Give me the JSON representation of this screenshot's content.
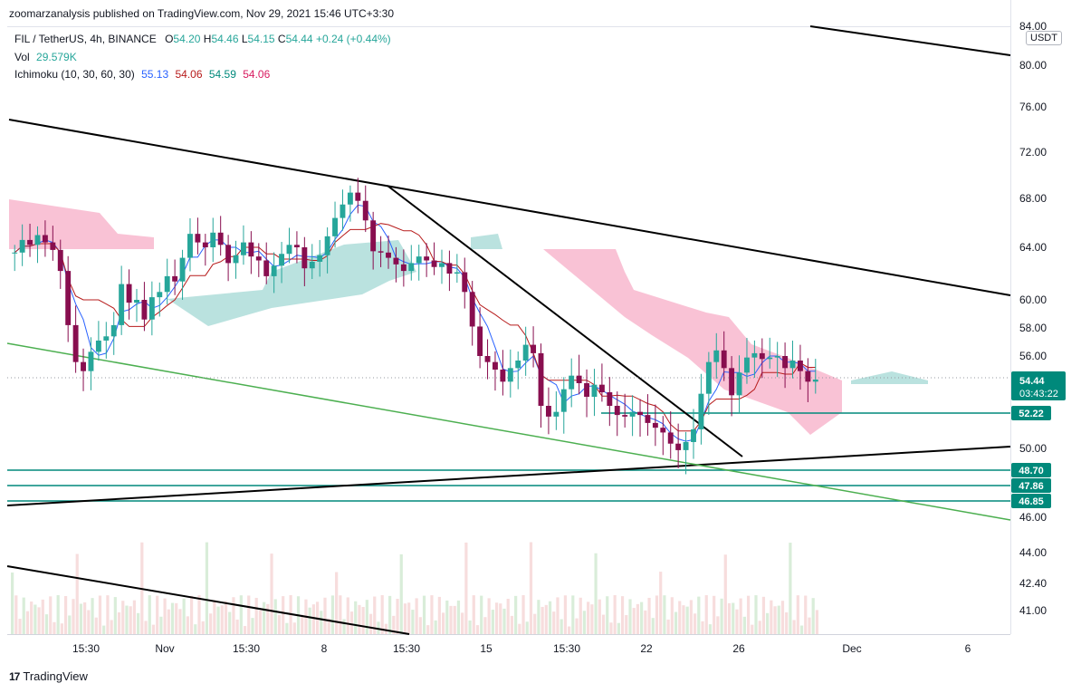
{
  "publisher_line": "zoomarzanalysis published on TradingView.com, Nov 29, 2021 15:46 UTC+3:30",
  "legend": {
    "symbol": "FIL / TetherUS, 4h, BINANCE",
    "open_label": "O",
    "open": "54.20",
    "high_label": "H",
    "high": "54.46",
    "low_label": "L",
    "low": "54.15",
    "close_label": "C",
    "close": "54.44",
    "change": "+0.24 (+0.44%)",
    "vol_label": "Vol",
    "vol": "29.579K",
    "ichimoku_label": "Ichimoku (10, 30, 60, 30)",
    "ichi_1": "55.13",
    "ichi_2": "54.06",
    "ichi_3": "54.59",
    "ichi_4": "54.06"
  },
  "currency": "USDT",
  "footer": {
    "logo": "17",
    "brand": "TradingView"
  },
  "colors": {
    "up": "#26a69a",
    "down": "#ef5350",
    "candle_up": "#26a69a",
    "candle_down": "#880e4f",
    "conversion": "#2962ff",
    "base": "#b71c1c",
    "cloud_bull": "#b2dfdb",
    "cloud_bear": "#f8bbd0",
    "trendline": "#000000",
    "green_line": "#4caf50",
    "level": "#00897b"
  },
  "chart_data": {
    "type": "candlestick",
    "symbol": "FIL / TetherUS",
    "timeframe": "4h",
    "exchange": "BINANCE",
    "y_ticks": [
      "84.00",
      "80.00",
      "76.00",
      "72.00",
      "68.00",
      "64.00",
      "60.00",
      "58.00",
      "56.00",
      "52.22",
      "50.00",
      "46.00",
      "44.00",
      "42.40",
      "41.00"
    ],
    "x_ticks": [
      "15:30",
      "Nov",
      "15:30",
      "8",
      "15:30",
      "15",
      "15:30",
      "22",
      "26",
      "Dec",
      "6"
    ],
    "last_price": "54.44",
    "countdown": "03:43:22",
    "horizontal_levels": [
      "52.22",
      "48.70",
      "47.86",
      "46.85"
    ],
    "close_series": [
      63.6,
      64.6,
      64.2,
      65.0,
      64.4,
      63.8,
      62.2,
      58.2,
      55.6,
      55.0,
      56.3,
      57.1,
      57.4,
      58.2,
      61.2,
      59.8,
      60.0,
      58.6,
      60.2,
      60.6,
      61.8,
      61.4,
      63.2,
      65.1,
      64.4,
      64.0,
      65.2,
      64.2,
      62.8,
      63.4,
      64.4,
      63.3,
      63.0,
      61.8,
      62.6,
      63.5,
      64.2,
      64.0,
      62.4,
      62.9,
      63.4,
      64.9,
      66.4,
      67.5,
      68.5,
      67.8,
      66.2,
      63.7,
      63.6,
      63.2,
      62.7,
      62.2,
      62.8,
      63.3,
      63.0,
      62.5,
      62.8,
      62.0,
      62.1,
      60.6,
      58.1,
      56.0,
      55.6,
      55.1,
      54.3,
      55.2,
      55.7,
      56.8,
      56.2,
      52.7,
      52.0,
      52.3,
      53.8,
      54.7,
      54.2,
      53.3,
      54.1,
      53.6,
      52.7,
      52.1,
      52.0,
      52.3,
      52.1,
      51.6,
      51.3,
      51.0,
      50.3,
      49.9,
      50.4,
      51.2,
      53.5,
      55.6,
      56.4,
      55.2,
      53.4,
      54.9,
      55.9,
      56.2,
      55.8,
      55.9,
      56.0,
      55.2,
      55.7,
      55.0,
      54.3,
      54.44
    ]
  }
}
